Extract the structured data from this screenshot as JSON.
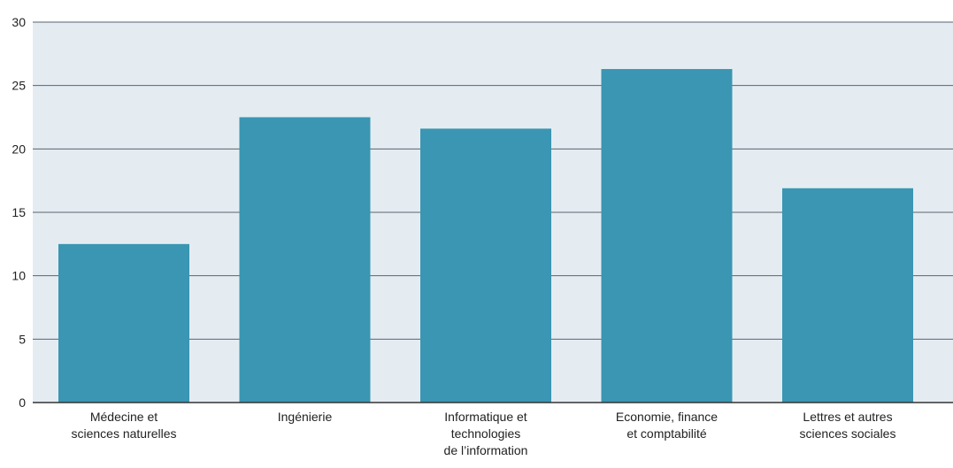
{
  "chart_data": {
    "type": "bar",
    "title": "",
    "xlabel": "",
    "ylabel": "",
    "ylim": [
      0,
      30
    ],
    "yticks": [
      0,
      5,
      10,
      15,
      20,
      25,
      30
    ],
    "grid": true,
    "categories": [
      [
        "Médecine et",
        "sciences naturelles"
      ],
      [
        "Ingénierie"
      ],
      [
        "Informatique et",
        "technologies",
        "de l’information"
      ],
      [
        "Economie, finance",
        "et comptabilité"
      ],
      [
        "Lettres et autres",
        "sciences sociales"
      ]
    ],
    "values": [
      12.5,
      22.5,
      21.6,
      26.3,
      16.9
    ],
    "colors": {
      "bar": "#3a96b2",
      "plot_background": "#e4ecf2",
      "gridline": "#5a6470",
      "axis": "#333333"
    }
  }
}
